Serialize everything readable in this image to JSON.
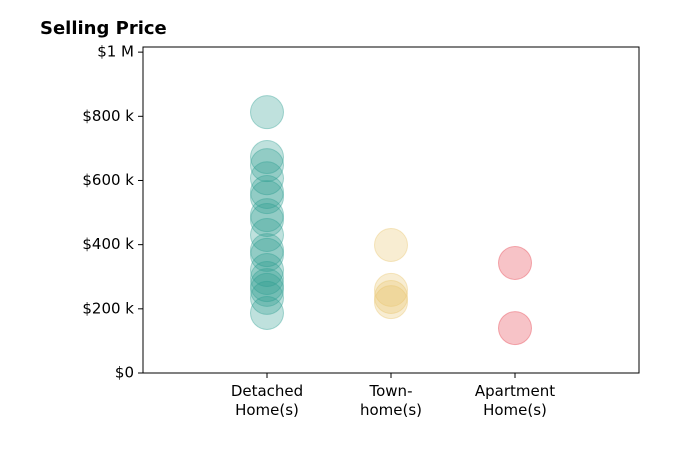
{
  "chart_data": {
    "type": "strip",
    "title": "Selling Price",
    "groups": [
      {
        "label": "Detached\nHome(s)",
        "color": "#2a9d8f",
        "values": [
          813000,
          673000,
          648000,
          607000,
          564000,
          548000,
          492000,
          477000,
          430000,
          383000,
          368000,
          321000,
          296000,
          274000,
          259000,
          234000,
          187000
        ]
      },
      {
        "label": "Town-\nhome(s)",
        "color": "#e9c46a",
        "values": [
          399000,
          259000,
          237000,
          221000
        ]
      },
      {
        "label": "Apartment\nHome(s)",
        "color": "#e63946",
        "values": [
          343000,
          140000
        ]
      }
    ],
    "ylim": [
      0,
      1016000
    ],
    "yticks": [
      {
        "value": 0,
        "label": "$0"
      },
      {
        "value": 200000,
        "label": "$200 k"
      },
      {
        "value": 400000,
        "label": "$400 k"
      },
      {
        "value": 600000,
        "label": "$600 k"
      },
      {
        "value": 800000,
        "label": "$800 k"
      },
      {
        "value": 1000000,
        "label": "$1 M"
      }
    ],
    "marker_opacity": 0.3
  }
}
